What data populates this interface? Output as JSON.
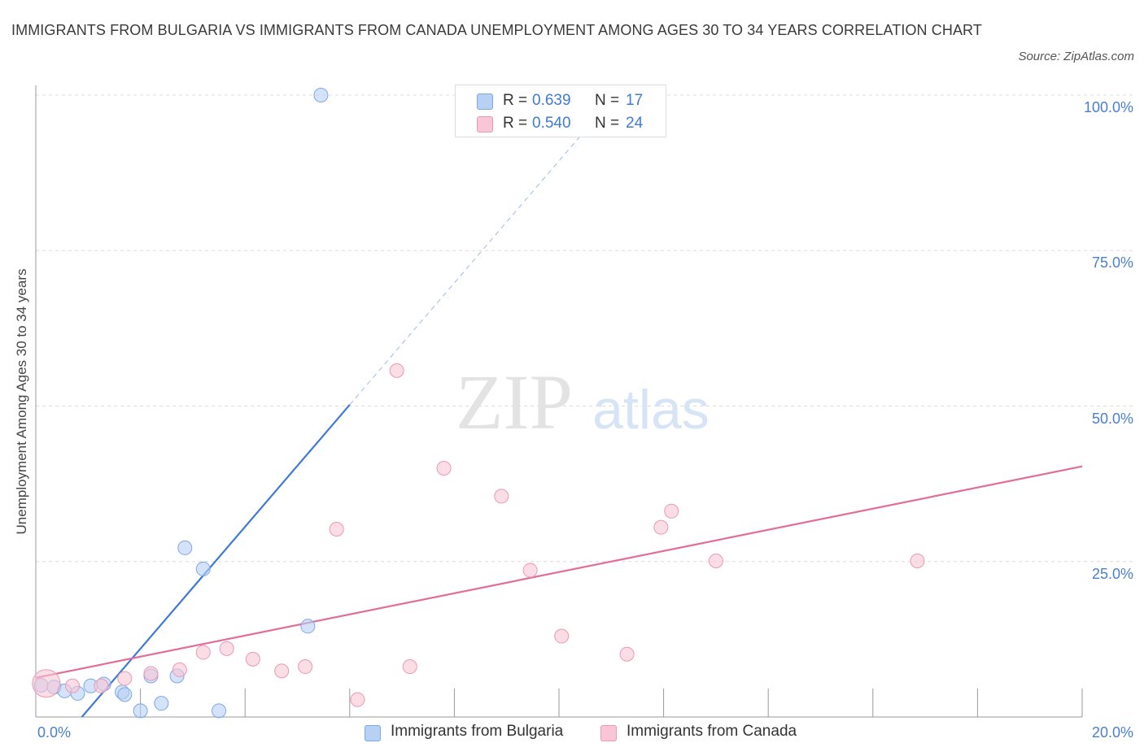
{
  "title": "IMMIGRANTS FROM BULGARIA VS IMMIGRANTS FROM CANADA UNEMPLOYMENT AMONG AGES 30 TO 34 YEARS CORRELATION CHART",
  "source": "Source: ZipAtlas.com",
  "watermark": {
    "zip": "ZIP",
    "atlas": "atlas"
  },
  "legend": {
    "r_label": "R =",
    "n_label": "N =",
    "rows": [
      {
        "name": "Immigrants from Bulgaria",
        "r": "0.639",
        "n": "17",
        "fill": "#b7d1f5",
        "stroke": "#7ea8e3"
      },
      {
        "name": "Immigrants from Canada",
        "r": "0.540",
        "n": "24",
        "fill": "#f8c6d6",
        "stroke": "#e999b4"
      }
    ]
  },
  "chart_data": {
    "type": "scatter",
    "title": "IMMIGRANTS FROM BULGARIA VS IMMIGRANTS FROM CANADA UNEMPLOYMENT AMONG AGES 30 TO 34 YEARS CORRELATION CHART",
    "xlabel": "",
    "ylabel": "Unemployment Among Ages 30 to 34 years",
    "xlim": [
      0,
      20
    ],
    "ylim": [
      0,
      100
    ],
    "x_tick_labels": [
      "0.0%",
      "20.0%"
    ],
    "y_ticks": [
      25,
      50,
      75,
      100
    ],
    "y_tick_labels": [
      "25.0%",
      "50.0%",
      "75.0%",
      "100.0%"
    ],
    "grid": true,
    "legend_position": "top-center",
    "series": [
      {
        "name": "Immigrants from Bulgaria",
        "color": "#3f7ad6",
        "fill": "#b7d1f5",
        "r": 0.639,
        "n": 17,
        "points": [
          [
            0.1,
            5.1
          ],
          [
            0.35,
            4.8
          ],
          [
            0.55,
            4.2
          ],
          [
            0.8,
            3.8
          ],
          [
            1.05,
            5.0
          ],
          [
            1.3,
            5.3
          ],
          [
            1.65,
            4.0
          ],
          [
            1.7,
            3.6
          ],
          [
            2.0,
            1.0
          ],
          [
            2.2,
            6.6
          ],
          [
            2.4,
            2.2
          ],
          [
            2.7,
            6.6
          ],
          [
            2.85,
            27.2
          ],
          [
            3.2,
            23.8
          ],
          [
            3.5,
            1.0
          ],
          [
            5.2,
            14.6
          ],
          [
            5.45,
            100.0
          ]
        ],
        "trend": {
          "x0": 0.88,
          "y0": 0.0,
          "x1": 6.0,
          "y1": 50.2,
          "dash_to_x": 10.6,
          "dash_to_y": 95.3
        }
      },
      {
        "name": "Immigrants from Canada",
        "color": "#e26d98",
        "fill": "#f8c6d6",
        "r": 0.54,
        "n": 24,
        "points": [
          [
            0.2,
            5.4
          ],
          [
            0.7,
            5.0
          ],
          [
            1.25,
            5.0
          ],
          [
            1.7,
            6.2
          ],
          [
            2.2,
            7.0
          ],
          [
            2.75,
            7.6
          ],
          [
            3.2,
            10.4
          ],
          [
            3.65,
            11.0
          ],
          [
            4.15,
            9.3
          ],
          [
            4.7,
            7.4
          ],
          [
            5.15,
            8.1
          ],
          [
            5.75,
            30.2
          ],
          [
            6.15,
            2.8
          ],
          [
            6.9,
            55.7
          ],
          [
            7.15,
            8.1
          ],
          [
            7.8,
            40.0
          ],
          [
            8.9,
            35.5
          ],
          [
            9.45,
            23.6
          ],
          [
            10.05,
            13.0
          ],
          [
            11.3,
            10.1
          ],
          [
            11.95,
            30.5
          ],
          [
            12.15,
            33.1
          ],
          [
            13.0,
            25.1
          ],
          [
            16.85,
            25.1
          ]
        ],
        "trend": {
          "x0": 0.0,
          "y0": 6.3,
          "x1": 20.0,
          "y1": 40.3
        }
      }
    ]
  }
}
